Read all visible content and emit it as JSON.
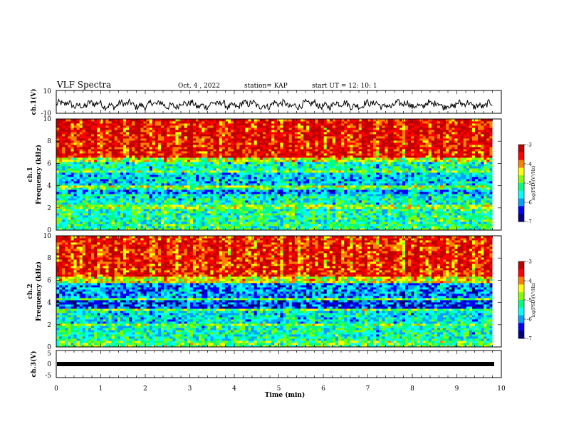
{
  "header": {
    "title": "VLF Spectra",
    "date": "Oct. 4 , 2022",
    "station": "station= KAP",
    "start": "start UT =   12: 10: 1"
  },
  "colorbar": {
    "ticks": [
      "-3",
      "-4",
      "-5",
      "-6",
      "-7"
    ],
    "label": "log(PSD)(V²/Hz)",
    "colors": [
      "#000080",
      "#0000ff",
      "#00a0ff",
      "#00ffff",
      "#00ff80",
      "#80ff00",
      "#ffff00",
      "#ff8000",
      "#ff0000",
      "#c00000"
    ]
  },
  "chart_data": [
    {
      "id": "ch1_waveform",
      "type": "line",
      "ylabel": "ch.1(V)",
      "ylim": [
        -10,
        10
      ],
      "yticks": [
        "10",
        "-10"
      ],
      "xlim": [
        0,
        10
      ],
      "x_range_data": [
        0,
        9.8
      ],
      "approx_mean": -2.5,
      "approx_amplitude": 4
    },
    {
      "id": "ch1_spectrogram",
      "type": "heatmap",
      "ylabel": "ch.1\nFrequency (kHz)",
      "ylim": [
        0,
        10
      ],
      "yticks": [
        "10",
        "8",
        "6",
        "4",
        "2",
        "0"
      ],
      "xlim": [
        0,
        10
      ],
      "x_range_data": [
        0,
        9.8
      ],
      "zlim": [
        -7,
        -3
      ],
      "zlabel": "log(PSD)(V²/Hz)",
      "bands": [
        {
          "f0": 0.0,
          "f1": 0.6,
          "level": -5.2
        },
        {
          "f0": 0.6,
          "f1": 2.0,
          "level": -5.3
        },
        {
          "f0": 2.0,
          "f1": 2.3,
          "level": -4.8
        },
        {
          "f0": 2.3,
          "f1": 3.3,
          "level": -5.5
        },
        {
          "f0": 3.3,
          "f1": 3.6,
          "level": -6.0
        },
        {
          "f0": 3.6,
          "f1": 3.9,
          "level": -5.2
        },
        {
          "f0": 3.9,
          "f1": 4.1,
          "level": -4.7
        },
        {
          "f0": 4.1,
          "f1": 5.1,
          "level": -5.7
        },
        {
          "f0": 5.1,
          "f1": 5.3,
          "level": -4.9
        },
        {
          "f0": 5.3,
          "f1": 6.1,
          "level": -5.4
        },
        {
          "f0": 6.1,
          "f1": 6.5,
          "level": -4.6
        },
        {
          "f0": 6.5,
          "f1": 10.0,
          "level": -3.5
        }
      ]
    },
    {
      "id": "ch2_spectrogram",
      "type": "heatmap",
      "ylabel": "ch.2\nFrequency (kHz)",
      "ylim": [
        0,
        10
      ],
      "yticks": [
        "10",
        "8",
        "6",
        "4",
        "2",
        "0"
      ],
      "xlim": [
        0,
        10
      ],
      "x_range_data": [
        0,
        9.8
      ],
      "zlim": [
        -7,
        -3
      ],
      "zlabel": "log(PSD)(V²/Hz)",
      "bands": [
        {
          "f0": 0.0,
          "f1": 0.5,
          "level": -5.0
        },
        {
          "f0": 0.5,
          "f1": 1.9,
          "level": -5.4
        },
        {
          "f0": 1.9,
          "f1": 2.2,
          "level": -4.8
        },
        {
          "f0": 2.2,
          "f1": 3.2,
          "level": -5.6
        },
        {
          "f0": 3.2,
          "f1": 3.4,
          "level": -4.9
        },
        {
          "f0": 3.4,
          "f1": 4.2,
          "level": -6.3
        },
        {
          "f0": 4.2,
          "f1": 4.5,
          "level": -5.0
        },
        {
          "f0": 4.5,
          "f1": 5.8,
          "level": -6.0
        },
        {
          "f0": 5.8,
          "f1": 6.3,
          "level": -4.5
        },
        {
          "f0": 6.3,
          "f1": 10.0,
          "level": -3.6
        }
      ]
    },
    {
      "id": "ch3_waveform",
      "type": "line",
      "ylabel": "ch.3(V)",
      "ylim": [
        -5,
        5
      ],
      "yticks": [
        "5",
        "0",
        "-5"
      ],
      "xlim": [
        0,
        10
      ],
      "x_range_data": [
        0,
        9.8
      ],
      "approx_mean": -1.0,
      "approx_amplitude": 0.3,
      "xlabel": "Time  (min)",
      "xticks": [
        "0",
        "1",
        "2",
        "3",
        "4",
        "5",
        "6",
        "7",
        "8",
        "9",
        "10"
      ]
    }
  ]
}
